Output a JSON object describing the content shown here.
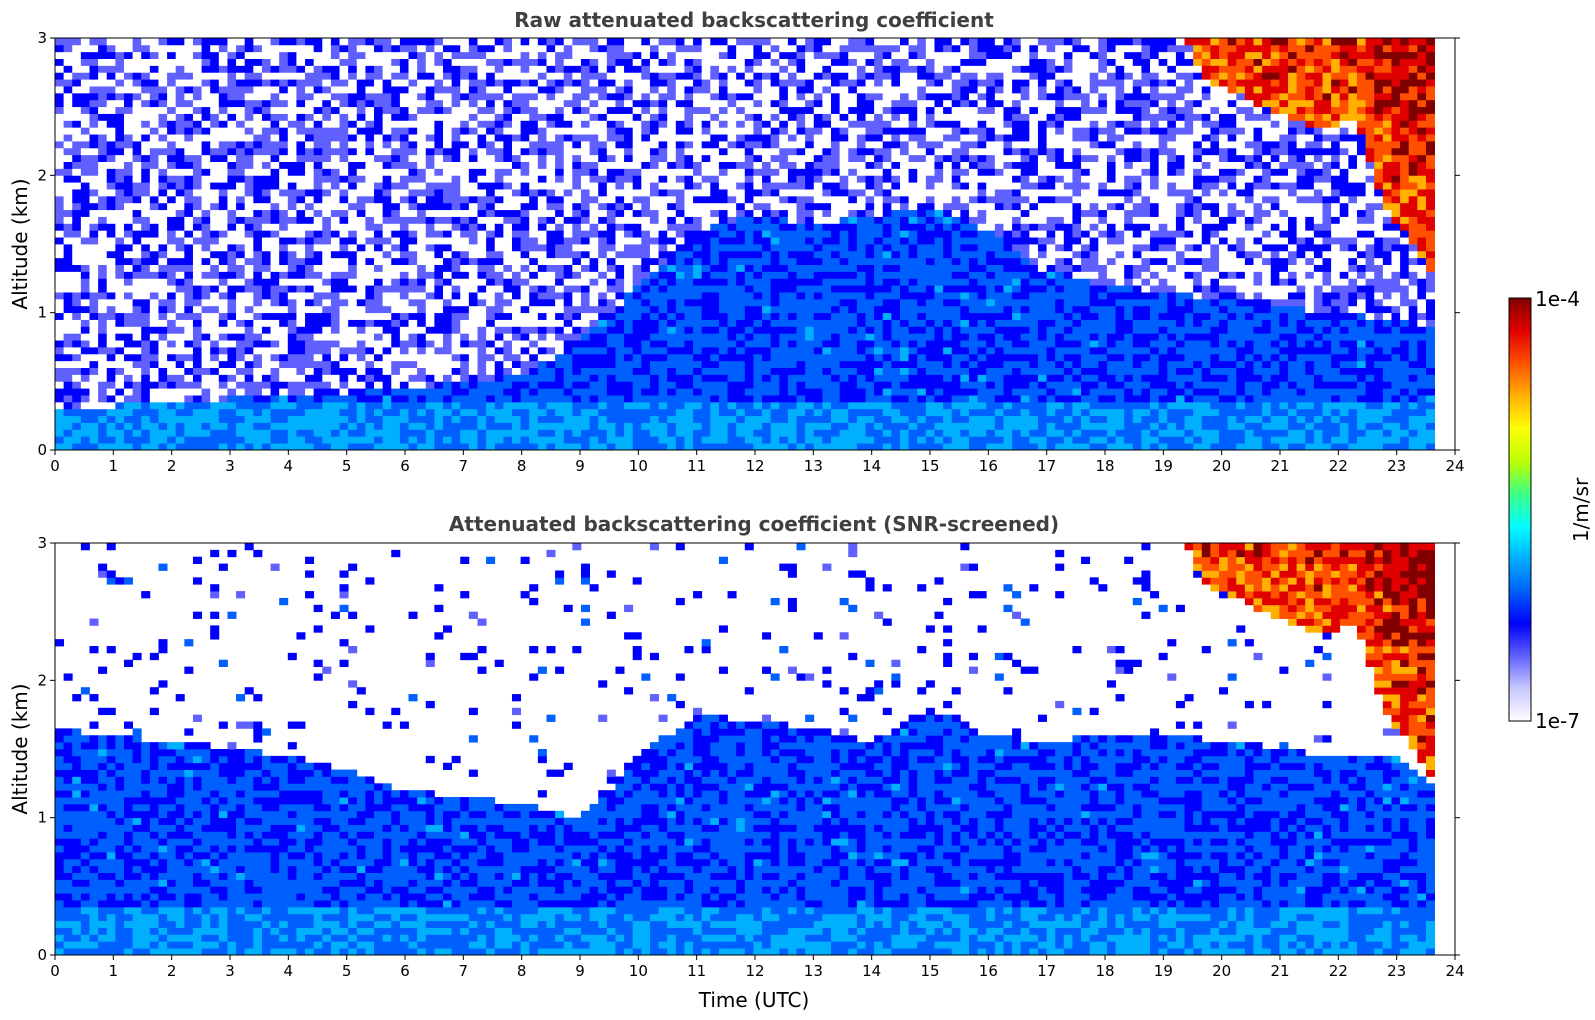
{
  "figure": {
    "colormap": [
      "#ffffff",
      "#c8c8ff",
      "#6060ff",
      "#0000ff",
      "#0060ff",
      "#00b0ff",
      "#00ffff",
      "#40ff80",
      "#c0ff00",
      "#ffff00",
      "#ffb000",
      "#ff5000",
      "#e00000",
      "#800000"
    ]
  },
  "chart_data": [
    {
      "type": "heatmap",
      "title": "Raw attenuated backscattering coefficient",
      "xlabel": "",
      "ylabel": "Altitude (km)",
      "xlim": [
        0,
        24
      ],
      "ylim": [
        0,
        3
      ],
      "xticks": [
        "0",
        "1",
        "2",
        "3",
        "4",
        "5",
        "6",
        "7",
        "8",
        "9",
        "10",
        "11",
        "12",
        "13",
        "14",
        "15",
        "16",
        "17",
        "18",
        "19",
        "20",
        "21",
        "22",
        "23",
        "24"
      ],
      "yticks": [
        "0",
        "1",
        "2",
        "3"
      ],
      "data_end_time": 23.65,
      "features": {
        "boundary_layer_top_km": [
          [
            0,
            0.3
          ],
          [
            2,
            0.35
          ],
          [
            4,
            0.4
          ],
          [
            6,
            0.45
          ],
          [
            8,
            0.55
          ],
          [
            9,
            0.8
          ],
          [
            10,
            1.2
          ],
          [
            11,
            1.6
          ],
          [
            12,
            1.7
          ],
          [
            13,
            1.65
          ],
          [
            14,
            1.7
          ],
          [
            15,
            1.8
          ],
          [
            16,
            1.6
          ],
          [
            17,
            1.3
          ],
          [
            18,
            1.2
          ],
          [
            20,
            1.1
          ],
          [
            22,
            1.0
          ],
          [
            23.65,
            0.9
          ]
        ],
        "upper_cloud_base_km": [
          [
            19.4,
            3.0
          ],
          [
            19.7,
            2.7
          ],
          [
            20.2,
            2.6
          ],
          [
            20.7,
            2.5
          ],
          [
            21.2,
            2.4
          ],
          [
            21.8,
            2.35
          ],
          [
            22.3,
            2.4
          ],
          [
            22.6,
            2.0
          ],
          [
            22.9,
            1.7
          ],
          [
            23.2,
            1.55
          ],
          [
            23.65,
            1.25
          ]
        ]
      }
    },
    {
      "type": "heatmap",
      "title": "Attenuated backscattering coefficient (SNR-screened)",
      "xlabel": "Time (UTC)",
      "ylabel": "Altitude (km)",
      "xlim": [
        0,
        24
      ],
      "ylim": [
        0,
        3
      ],
      "xticks": [
        "0",
        "1",
        "2",
        "3",
        "4",
        "5",
        "6",
        "7",
        "8",
        "9",
        "10",
        "11",
        "12",
        "13",
        "14",
        "15",
        "16",
        "17",
        "18",
        "19",
        "20",
        "21",
        "22",
        "23",
        "24"
      ],
      "yticks": [
        "0",
        "1",
        "2",
        "3"
      ],
      "data_end_time": 23.65,
      "features": {
        "signal_top_km": [
          [
            0,
            1.65
          ],
          [
            1,
            1.6
          ],
          [
            2,
            1.55
          ],
          [
            3,
            1.5
          ],
          [
            4,
            1.45
          ],
          [
            5,
            1.35
          ],
          [
            6,
            1.2
          ],
          [
            7,
            1.15
          ],
          [
            8,
            1.1
          ],
          [
            9,
            1.0
          ],
          [
            9.5,
            1.2
          ],
          [
            10,
            1.45
          ],
          [
            11,
            1.75
          ],
          [
            12,
            1.7
          ],
          [
            13,
            1.65
          ],
          [
            14,
            1.55
          ],
          [
            15,
            1.8
          ],
          [
            16,
            1.6
          ],
          [
            17,
            1.55
          ],
          [
            18,
            1.6
          ],
          [
            19,
            1.6
          ],
          [
            20,
            1.55
          ],
          [
            21,
            1.5
          ],
          [
            22,
            1.45
          ],
          [
            23,
            1.45
          ],
          [
            23.65,
            1.25
          ]
        ],
        "upper_cloud_base_km": [
          [
            19.4,
            3.0
          ],
          [
            19.7,
            2.7
          ],
          [
            20.2,
            2.6
          ],
          [
            20.7,
            2.5
          ],
          [
            21.2,
            2.4
          ],
          [
            21.8,
            2.35
          ],
          [
            22.3,
            2.4
          ],
          [
            22.6,
            2.0
          ],
          [
            22.9,
            1.7
          ],
          [
            23.2,
            1.55
          ],
          [
            23.65,
            1.25
          ]
        ]
      }
    }
  ],
  "colorbar": {
    "label": "1/m/sr",
    "max_label": "1e-4",
    "min_label": "1e-7"
  }
}
